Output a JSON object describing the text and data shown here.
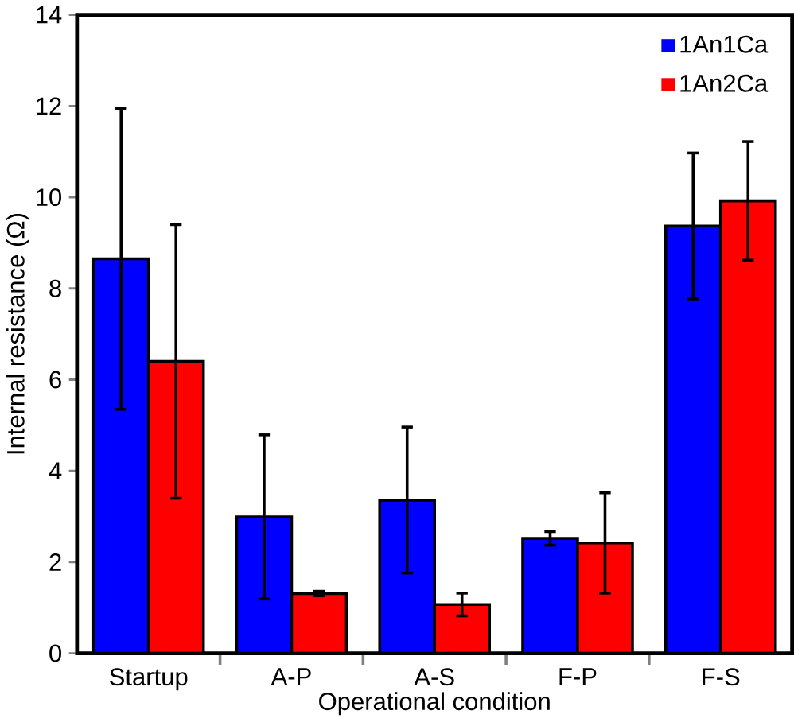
{
  "chart_data": {
    "type": "bar",
    "xlabel": "Operational condition",
    "ylabel": "Internal resistance (Ω)",
    "categories": [
      "Startup",
      "A-P",
      "A-S",
      "F-P",
      "F-S"
    ],
    "series": [
      {
        "name": "1An1Ca",
        "color": "#0000ff",
        "values": [
          8.65,
          2.99,
          3.36,
          2.52,
          9.37
        ],
        "errors": [
          3.3,
          1.8,
          1.6,
          0.15,
          1.6
        ]
      },
      {
        "name": "1An2Ca",
        "color": "#ff0000",
        "values": [
          6.4,
          1.31,
          1.07,
          2.42,
          9.92
        ],
        "errors": [
          3.0,
          0.05,
          0.25,
          1.1,
          1.3
        ]
      }
    ],
    "ylim": [
      0,
      14
    ],
    "yticks": [
      0,
      2,
      4,
      6,
      8,
      10,
      12,
      14
    ],
    "legend": "top right",
    "grid": false
  }
}
